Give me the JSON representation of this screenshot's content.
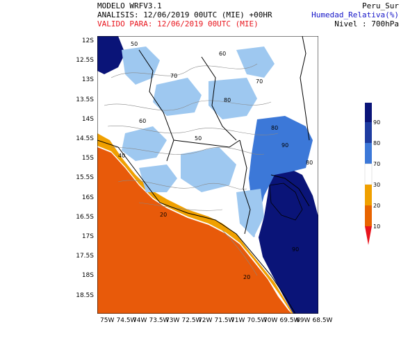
{
  "header": {
    "model": "MODELO WRFV3.1",
    "analysis": "ANALISIS: 12/06/2019 00UTC (MIE) +00HR",
    "valid": "VALIDO PARA: 12/06/2019 00UTC (MIE)",
    "region": "Peru_Sur",
    "variable": "Humedad_Relativa(%)",
    "level": "Nivel : 700hPa"
  },
  "axes": {
    "lat_labels": [
      "12S",
      "12.5S",
      "13S",
      "13.5S",
      "14S",
      "14.5S",
      "15S",
      "15.5S",
      "16S",
      "16.5S",
      "17S",
      "17.5S",
      "18S",
      "18.5S"
    ],
    "lon_labels": [
      "75W",
      "74.5W",
      "74W",
      "73.5W",
      "73W",
      "72.5W",
      "72W",
      "71.5W",
      "71W",
      "70.5W",
      "70W",
      "69.5W",
      "69W",
      "68.5W"
    ]
  },
  "colorbar": {
    "levels": [
      "10",
      "20",
      "30",
      "70",
      "80",
      "90"
    ],
    "colors": [
      "#e8141c",
      "#e86400",
      "#f0a000",
      "#ffffff",
      "#9ec8f0",
      "#3c78d8",
      "#1e3ca0",
      "#0a1478"
    ]
  },
  "contour_labels": [
    "50",
    "60",
    "70",
    "80",
    "90",
    "20",
    "30",
    "40"
  ],
  "colors": {
    "ocean_dry": "#e85a0a",
    "coast_orange": "#f0a000",
    "moist_light": "#9ec8f0",
    "moist_mid": "#3c78d8",
    "moist_dark": "#0a1478"
  }
}
